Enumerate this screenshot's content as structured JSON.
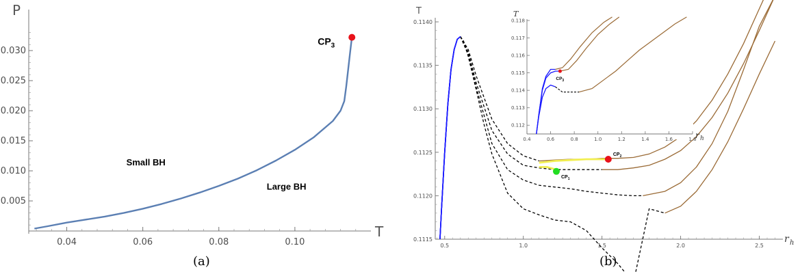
{
  "chart_data": [
    {
      "type": "line",
      "panel_label": "(a)",
      "xlabel": "T",
      "ylabel": "P",
      "xlim": [
        0.03,
        0.12
      ],
      "ylim": [
        0.0,
        0.035
      ],
      "xticks": [
        "0.04",
        "0.06",
        "0.08",
        "0.10"
      ],
      "xtick_values": [
        0.04,
        0.06,
        0.08,
        0.1
      ],
      "yticks": [
        "0.005",
        "0.010",
        "0.015",
        "0.020",
        "0.025",
        "0.030"
      ],
      "ytick_values": [
        0.005,
        0.01,
        0.015,
        0.02,
        0.025,
        0.03
      ],
      "series": [
        {
          "color": "#5b7fb3",
          "x": [
            0.0315,
            0.035,
            0.04,
            0.044,
            0.05,
            0.055,
            0.06,
            0.065,
            0.07,
            0.075,
            0.08,
            0.085,
            0.09,
            0.095,
            0.1,
            0.105,
            0.11,
            0.112,
            0.113,
            0.1135,
            0.114,
            0.1145,
            0.115
          ],
          "y": [
            0.0004,
            0.0008,
            0.0014,
            0.0018,
            0.0024,
            0.003,
            0.0037,
            0.0045,
            0.0054,
            0.0064,
            0.0075,
            0.0087,
            0.0101,
            0.0117,
            0.0135,
            0.0156,
            0.0183,
            0.02,
            0.0216,
            0.024,
            0.0268,
            0.0295,
            0.0322
          ]
        }
      ],
      "critical_point": {
        "label": "CP",
        "subscript": "3",
        "x": 0.115,
        "y": 0.0322,
        "color": "#e8121a"
      },
      "annotations": [
        {
          "text": "Small BH",
          "x": 0.06,
          "y": 0.0109
        },
        {
          "text": "Large BH",
          "x": 0.098,
          "y": 0.0069
        }
      ]
    },
    {
      "type": "line",
      "panel_label": "(b)",
      "xlabel": "T",
      "xlabel_label": "r",
      "xlabel_sub": "h",
      "ylabel": "T",
      "xlim": [
        0.44,
        2.65
      ],
      "ylim": [
        0.1115,
        0.114
      ],
      "xticks": [
        "0.5",
        "1.0",
        "1.5",
        "2.0",
        "2.5"
      ],
      "xtick_values": [
        0.5,
        1.0,
        1.5,
        2.0,
        2.5
      ],
      "yticks": [
        "0.1115",
        "0.1120",
        "0.1125",
        "0.1130",
        "0.1135",
        "0.1140"
      ],
      "ytick_values": [
        0.1115,
        0.112,
        0.1125,
        0.113,
        0.1135,
        0.114
      ],
      "branches": {
        "small_color": "#1a1aff",
        "unstable_style": "dashed",
        "large_color": "#9a6a35",
        "coexistence_color": "#f2ef52"
      },
      "curves": [
        {
          "small": {
            "x": [
              0.47,
              0.48,
              0.5,
              0.52,
              0.54,
              0.56,
              0.58,
              0.6
            ],
            "y": [
              0.1115,
              0.11185,
              0.1125,
              0.11305,
              0.11345,
              0.11368,
              0.1138,
              0.11383
            ]
          },
          "unstable": {
            "x": [
              0.6,
              0.62,
              0.65,
              0.7,
              0.75,
              0.8,
              0.9,
              1.0,
              1.1,
              1.2,
              1.3,
              1.4,
              1.5,
              1.6,
              1.7,
              1.8,
              1.9
            ],
            "y": [
              0.11383,
              0.11378,
              0.1136,
              0.11322,
              0.11282,
              0.11248,
              0.11203,
              0.11185,
              0.11178,
              0.11172,
              0.1117,
              0.1116,
              0.1114,
              0.11122,
              0.111,
              0.11185,
              0.1118
            ]
          },
          "large": {
            "x": [
              1.9,
              2.0,
              2.1,
              2.2,
              2.3,
              2.4,
              2.5,
              2.6
            ],
            "y": [
              0.1118,
              0.11188,
              0.11205,
              0.1123,
              0.11262,
              0.113,
              0.1134,
              0.11378
            ]
          }
        },
        {
          "small": {
            "x": [
              0.47,
              0.48,
              0.5,
              0.52,
              0.54,
              0.56,
              0.58,
              0.6
            ],
            "y": [
              0.1115,
              0.11185,
              0.1125,
              0.11305,
              0.11345,
              0.11368,
              0.1138,
              0.11383
            ]
          },
          "unstable": {
            "x": [
              0.6,
              0.65,
              0.7,
              0.8,
              0.9,
              1.0,
              1.1,
              1.2,
              1.3,
              1.4,
              1.5,
              1.6,
              1.7,
              1.76
            ],
            "y": [
              0.11383,
              0.11362,
              0.11325,
              0.1126,
              0.1123,
              0.11218,
              0.11212,
              0.1121,
              0.11208,
              0.11205,
              0.11203,
              0.11201,
              0.112,
              0.112
            ]
          },
          "large": {
            "x": [
              1.76,
              1.9,
              2.0,
              2.1,
              2.2,
              2.3,
              2.4,
              2.5,
              2.6
            ],
            "y": [
              0.112,
              0.11205,
              0.11215,
              0.11233,
              0.1126,
              0.11297,
              0.11345,
              0.11395,
              0.1143
            ]
          }
        },
        {
          "small": {
            "x": [
              0.47,
              0.48,
              0.5,
              0.52,
              0.54,
              0.56,
              0.58,
              0.6
            ],
            "y": [
              0.1115,
              0.11185,
              0.1125,
              0.11305,
              0.11345,
              0.11368,
              0.1138,
              0.11383
            ]
          },
          "unstable": {
            "x": [
              0.6,
              0.65,
              0.7,
              0.8,
              0.9,
              1.0,
              1.1,
              1.2,
              1.3,
              1.4,
              1.5
            ],
            "y": [
              0.11383,
              0.11365,
              0.1133,
              0.11275,
              0.11248,
              0.11235,
              0.11232,
              0.1123,
              0.1123,
              0.1123,
              0.1123
            ]
          },
          "large": {
            "x": [
              1.5,
              1.6,
              1.7,
              1.8,
              1.9,
              2.0,
              2.1,
              2.2,
              2.3,
              2.4,
              2.5,
              2.6
            ],
            "y": [
              0.1123,
              0.1123,
              0.11232,
              0.11235,
              0.11242,
              0.11252,
              0.11268,
              0.1129,
              0.11318,
              0.11352,
              0.1139,
              0.1143
            ]
          }
        },
        {
          "small": {
            "x": [
              0.47,
              0.48,
              0.5,
              0.52,
              0.54,
              0.56,
              0.58,
              0.6
            ],
            "y": [
              0.1115,
              0.11185,
              0.1125,
              0.11305,
              0.11345,
              0.11368,
              0.1138,
              0.11383
            ]
          },
          "unstable": {
            "x": [
              0.6,
              0.65,
              0.7,
              0.8,
              0.9,
              1.0,
              1.1
            ],
            "y": [
              0.11383,
              0.11368,
              0.11338,
              0.11288,
              0.1126,
              0.11246,
              0.1124
            ]
          },
          "large": {
            "x": [
              1.1,
              1.2,
              1.3,
              1.4,
              1.5,
              1.6,
              1.7,
              1.8,
              1.9,
              2.0,
              2.1,
              2.2,
              2.3,
              2.4,
              2.5,
              2.6
            ],
            "y": [
              0.1124,
              0.11241,
              0.11242,
              0.11242,
              0.11243,
              0.11243,
              0.11244,
              0.11248,
              0.11256,
              0.11268,
              0.11286,
              0.1131,
              0.1134,
              0.11375,
              0.11415,
              0.11455
            ]
          }
        }
      ],
      "coexistence_segments": [
        {
          "x": [
            1.1,
            1.2,
            1.3,
            1.4,
            1.5,
            1.54
          ],
          "y": [
            0.11238,
            0.1124,
            0.11241,
            0.11242,
            0.11242,
            0.11242
          ]
        },
        {
          "x": [
            1.1,
            1.15,
            1.21
          ],
          "y": [
            0.11233,
            0.11233,
            0.1123
          ]
        }
      ],
      "critical_points": [
        {
          "label": "CP",
          "subscript": "2",
          "x": 1.54,
          "y": 0.11242,
          "color": "#e8121a"
        },
        {
          "label": "CP",
          "subscript": "1",
          "x": 1.21,
          "y": 0.11228,
          "color": "#22dd22"
        }
      ],
      "inset": {
        "xlabel": "r",
        "xlabel_sub": "h",
        "ylabel": "T",
        "xlim": [
          0.4,
          1.8
        ],
        "ylim": [
          0.1115,
          0.118
        ],
        "xticks": [
          "0.4",
          "0.6",
          "0.8",
          "1.0",
          "1.2",
          "1.4",
          "1.6",
          "1.8"
        ],
        "xtick_values": [
          0.4,
          0.6,
          0.8,
          1.0,
          1.2,
          1.4,
          1.6,
          1.8
        ],
        "yticks": [
          "0.112",
          "0.113",
          "0.114",
          "0.115",
          "0.116",
          "0.117",
          "0.118"
        ],
        "ytick_values": [
          0.112,
          0.113,
          0.114,
          0.115,
          0.116,
          0.117,
          0.118
        ],
        "curves": [
          {
            "small": {
              "x": [
                0.48,
                0.5,
                0.53,
                0.56,
                0.6,
                0.64
              ],
              "y": [
                0.1115,
                0.1125,
                0.1136,
                0.1141,
                0.1143,
                0.1142
              ]
            },
            "unstable": {
              "x": [
                0.64,
                0.7,
                0.76,
                0.84
              ],
              "y": [
                0.1142,
                0.1139,
                0.1139,
                0.1139
              ]
            },
            "large": {
              "x": [
                0.84,
                0.95,
                1.05,
                1.15,
                1.25,
                1.35,
                1.45,
                1.55,
                1.65,
                1.75
              ],
              "y": [
                0.1139,
                0.1141,
                0.1146,
                0.1151,
                0.1157,
                0.1163,
                0.1168,
                0.1173,
                0.1178,
                0.1182
              ]
            }
          },
          {
            "small": {
              "x": [
                0.48,
                0.5,
                0.53,
                0.56,
                0.6,
                0.64,
                0.68
              ],
              "y": [
                0.1115,
                0.1126,
                0.114,
                0.1147,
                0.115,
                0.1151,
                0.1151
              ]
            },
            "unstable": {
              "x": [],
              "y": []
            },
            "large": {
              "x": [
                0.68,
                0.75,
                0.82,
                0.9,
                1.0,
                1.1,
                1.18
              ],
              "y": [
                0.1151,
                0.1152,
                0.1157,
                0.1164,
                0.1172,
                0.1178,
                0.1182
              ]
            }
          },
          {
            "small": {
              "x": [
                0.48,
                0.5,
                0.53,
                0.56,
                0.6,
                0.64
              ],
              "y": [
                0.1115,
                0.1126,
                0.1141,
                0.1148,
                0.1152,
                0.1152
              ]
            },
            "unstable": {
              "x": [],
              "y": []
            },
            "large": {
              "x": [
                0.64,
                0.7,
                0.77,
                0.85,
                0.95,
                1.05,
                1.12
              ],
              "y": [
                0.1152,
                0.1153,
                0.1158,
                0.1165,
                0.1173,
                0.1179,
                0.1182
              ]
            }
          }
        ],
        "critical_point": {
          "label": "CP",
          "subscript": "3",
          "x": 0.68,
          "y": 0.1151,
          "color": "#e8121a"
        }
      }
    }
  ]
}
